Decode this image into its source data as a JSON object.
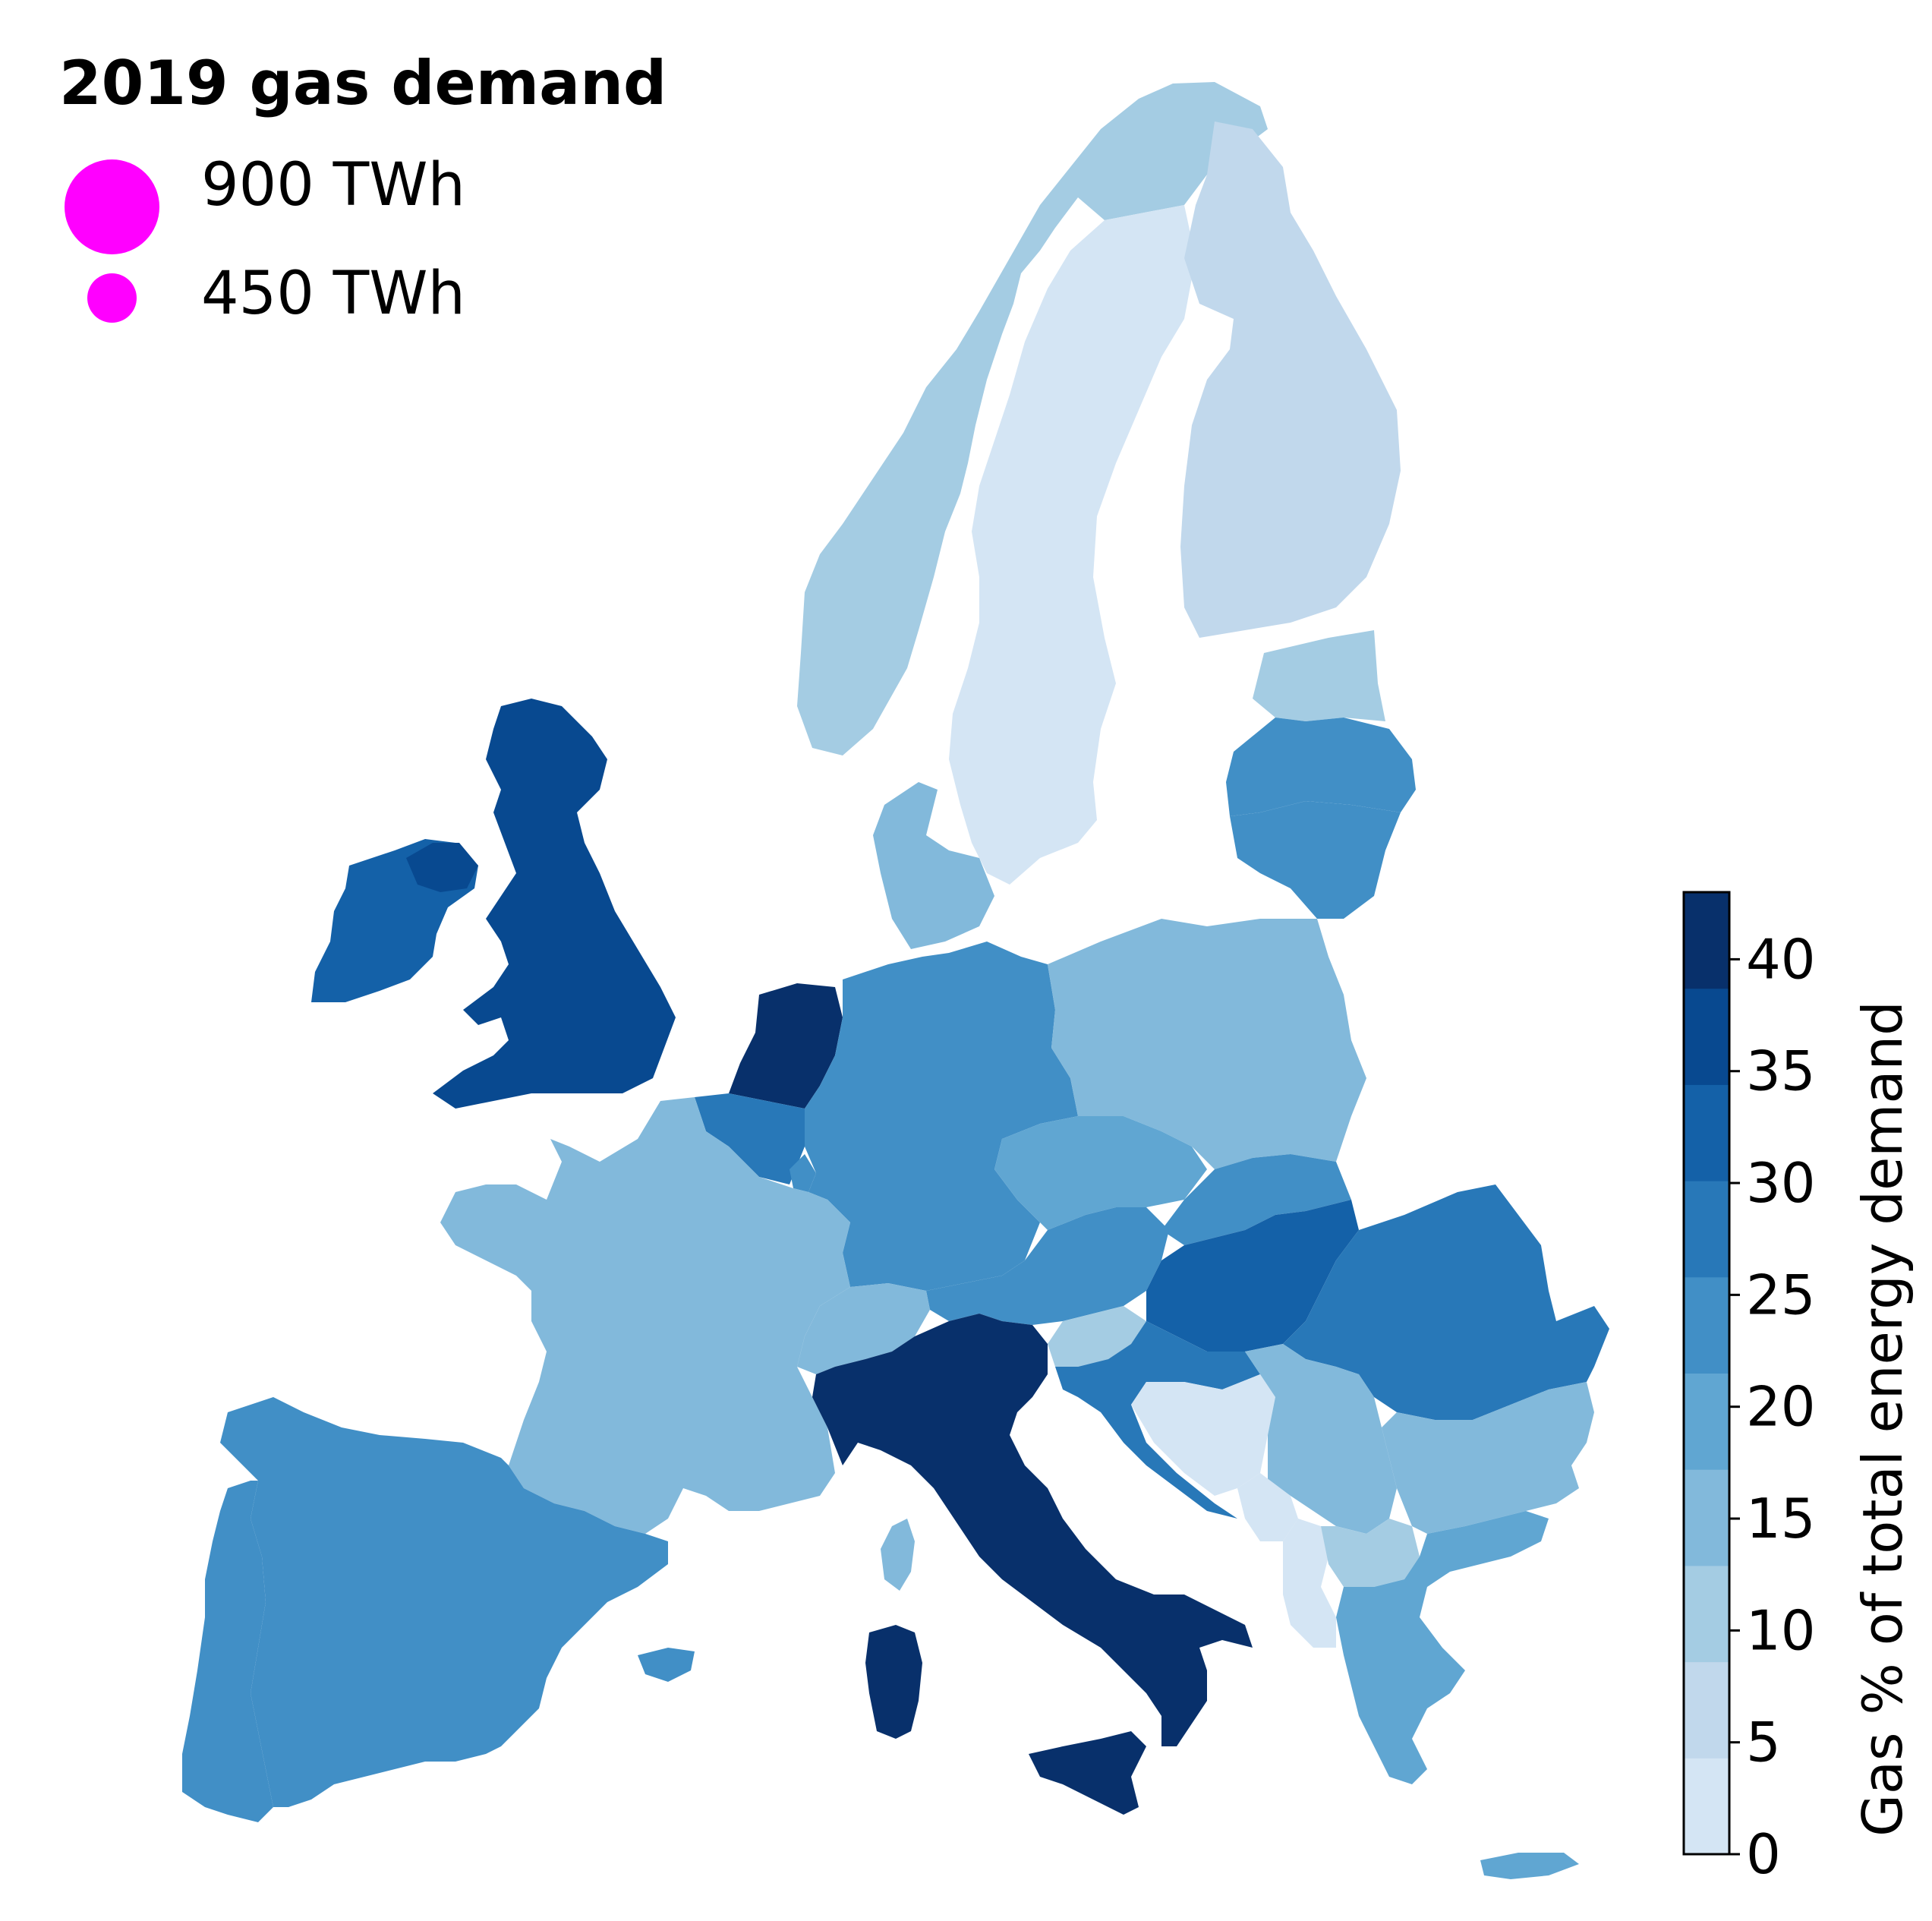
{
  "legend": {
    "title": "2019 gas demand",
    "items": [
      {
        "label": "900 TWh",
        "value_twh": 900
      },
      {
        "label": "450 TWh",
        "value_twh": 450
      }
    ],
    "marker_color": "#ff00ff"
  },
  "colorbar": {
    "label": "Gas % of total energy demand",
    "ticks": [
      "0",
      "5",
      "10",
      "15",
      "20",
      "25",
      "30",
      "35",
      "40"
    ],
    "range": [
      0,
      43
    ],
    "bins": [
      {
        "from": 0,
        "to": 4.3,
        "color": "#d4e5f4"
      },
      {
        "from": 4.3,
        "to": 8.6,
        "color": "#c1d8ec"
      },
      {
        "from": 8.6,
        "to": 12.9,
        "color": "#a4cce3"
      },
      {
        "from": 12.9,
        "to": 17.2,
        "color": "#82b9db"
      },
      {
        "from": 17.2,
        "to": 21.5,
        "color": "#60a6d2"
      },
      {
        "from": 21.5,
        "to": 25.8,
        "color": "#418fc6"
      },
      {
        "from": 25.8,
        "to": 30.1,
        "color": "#2878b8"
      },
      {
        "from": 30.1,
        "to": 34.4,
        "color": "#1461a8"
      },
      {
        "from": 34.4,
        "to": 38.7,
        "color": "#084990"
      },
      {
        "from": 38.7,
        "to": 43,
        "color": "#08306b"
      }
    ]
  },
  "regions": [
    {
      "name": "Norway",
      "color": "#a4cce3"
    },
    {
      "name": "Sweden",
      "color": "#d4e5f4"
    },
    {
      "name": "Finland",
      "color": "#c1d8ec"
    },
    {
      "name": "Estonia",
      "color": "#a4cce3"
    },
    {
      "name": "Latvia",
      "color": "#418fc6"
    },
    {
      "name": "Lithuania",
      "color": "#418fc6"
    },
    {
      "name": "Denmark",
      "color": "#82b9db"
    },
    {
      "name": "Ireland",
      "color": "#1461a8"
    },
    {
      "name": "United Kingdom",
      "color": "#084990"
    },
    {
      "name": "Netherlands",
      "color": "#08306b"
    },
    {
      "name": "Belgium",
      "color": "#2878b8"
    },
    {
      "name": "Luxembourg",
      "color": "#418fc6"
    },
    {
      "name": "Germany",
      "color": "#418fc6"
    },
    {
      "name": "Poland",
      "color": "#82b9db"
    },
    {
      "name": "Czechia",
      "color": "#60a6d2"
    },
    {
      "name": "Slovakia",
      "color": "#418fc6"
    },
    {
      "name": "Austria",
      "color": "#418fc6"
    },
    {
      "name": "Hungary",
      "color": "#1461a8"
    },
    {
      "name": "Romania",
      "color": "#2878b8"
    },
    {
      "name": "France",
      "color": "#82b9db"
    },
    {
      "name": "Switzerland",
      "color": "#82b9db"
    },
    {
      "name": "Italy",
      "color": "#08306b"
    },
    {
      "name": "Slovenia",
      "color": "#a4cce3"
    },
    {
      "name": "Croatia",
      "color": "#2878b8"
    },
    {
      "name": "Bosnia and Herzegovina",
      "color": "#d4e5f4"
    },
    {
      "name": "Serbia",
      "color": "#82b9db"
    },
    {
      "name": "Montenegro",
      "color": "#d4e5f4"
    },
    {
      "name": "Albania",
      "color": "#d4e5f4"
    },
    {
      "name": "North Macedonia",
      "color": "#a4cce3"
    },
    {
      "name": "Bulgaria",
      "color": "#82b9db"
    },
    {
      "name": "Greece",
      "color": "#60a6d2"
    },
    {
      "name": "Spain",
      "color": "#418fc6"
    },
    {
      "name": "Portugal",
      "color": "#418fc6"
    }
  ]
}
